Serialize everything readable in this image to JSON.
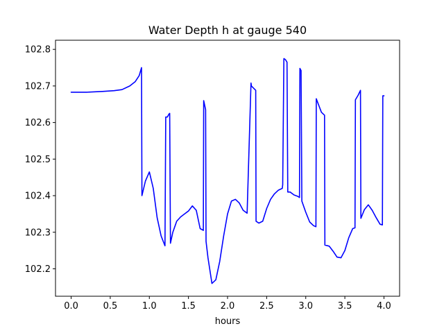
{
  "chart_data": {
    "type": "line",
    "title": "Water Depth h at gauge 540",
    "xlabel": "hours",
    "ylabel": "",
    "xlim": [
      -0.2,
      4.2
    ],
    "ylim": [
      102.125,
      102.825
    ],
    "xticks": [
      0.0,
      0.5,
      1.0,
      1.5,
      2.0,
      2.5,
      3.0,
      3.5,
      4.0
    ],
    "xtick_labels": [
      "0.0",
      "0.5",
      "1.0",
      "1.5",
      "2.0",
      "2.5",
      "3.0",
      "3.5",
      "4.0"
    ],
    "yticks": [
      102.2,
      102.3,
      102.4,
      102.5,
      102.6,
      102.7,
      102.8
    ],
    "ytick_labels": [
      "102.2",
      "102.3",
      "102.4",
      "102.5",
      "102.6",
      "102.7",
      "102.8"
    ],
    "grid": false,
    "series": [
      {
        "color": "#0000ff",
        "x": [
          0.0,
          0.2,
          0.4,
          0.55,
          0.65,
          0.75,
          0.82,
          0.87,
          0.9,
          0.905,
          0.95,
          1.0,
          1.05,
          1.1,
          1.15,
          1.2,
          1.21,
          1.23,
          1.25,
          1.26,
          1.27,
          1.3,
          1.35,
          1.4,
          1.45,
          1.5,
          1.55,
          1.6,
          1.65,
          1.69,
          1.695,
          1.72,
          1.725,
          1.75,
          1.8,
          1.85,
          1.9,
          1.95,
          2.0,
          2.05,
          2.1,
          2.15,
          2.2,
          2.25,
          2.3,
          2.305,
          2.36,
          2.365,
          2.4,
          2.45,
          2.5,
          2.55,
          2.6,
          2.65,
          2.7,
          2.705,
          2.72,
          2.74,
          2.76,
          2.77,
          2.8,
          2.85,
          2.9,
          2.92,
          2.925,
          2.94,
          2.95,
          3.0,
          3.05,
          3.1,
          3.13,
          3.135,
          3.17,
          3.2,
          3.24,
          3.245,
          3.3,
          3.35,
          3.4,
          3.45,
          3.5,
          3.55,
          3.6,
          3.63,
          3.635,
          3.67,
          3.7,
          3.705,
          3.75,
          3.8,
          3.85,
          3.9,
          3.95,
          3.98,
          3.985,
          4.0
        ],
        "y": [
          102.683,
          102.683,
          102.685,
          102.687,
          102.69,
          102.7,
          102.712,
          102.728,
          102.75,
          102.4,
          102.44,
          102.465,
          102.42,
          102.34,
          102.29,
          102.263,
          102.615,
          102.615,
          102.623,
          102.625,
          102.27,
          102.3,
          102.33,
          102.342,
          102.35,
          102.358,
          102.372,
          102.36,
          102.31,
          102.305,
          102.66,
          102.635,
          102.275,
          102.23,
          102.16,
          102.17,
          102.22,
          102.29,
          102.35,
          102.385,
          102.39,
          102.38,
          102.36,
          102.352,
          102.708,
          102.7,
          102.688,
          102.33,
          102.325,
          102.33,
          102.365,
          102.39,
          102.405,
          102.415,
          102.42,
          102.43,
          102.775,
          102.772,
          102.765,
          102.41,
          102.41,
          102.402,
          102.398,
          102.395,
          102.748,
          102.742,
          102.385,
          102.355,
          102.328,
          102.318,
          102.315,
          102.665,
          102.645,
          102.628,
          102.62,
          102.265,
          102.262,
          102.248,
          102.232,
          102.23,
          102.25,
          102.285,
          102.31,
          102.312,
          102.662,
          102.675,
          102.688,
          102.338,
          102.362,
          102.375,
          102.36,
          102.34,
          102.322,
          102.32,
          102.673,
          102.673
        ]
      }
    ]
  }
}
